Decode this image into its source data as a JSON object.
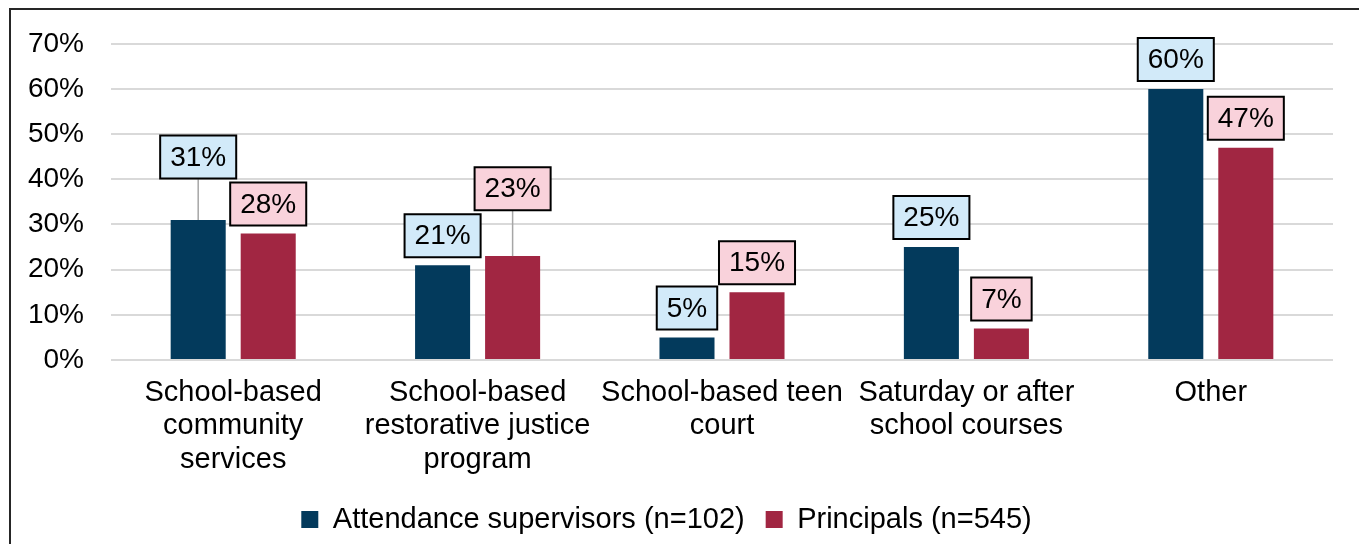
{
  "chart_data": {
    "type": "bar",
    "categories": [
      "School-based community services",
      "School-based restorative justice program",
      "School-based teen court",
      "Saturday or after school courses",
      "Other"
    ],
    "series": [
      {
        "name": "Attendance supervisors (n=102)",
        "color": "#033a5c",
        "values": [
          31,
          21,
          5,
          25,
          60
        ],
        "value_labels": [
          "31%",
          "21%",
          "5%",
          "25%",
          "60%"
        ]
      },
      {
        "name": "Principals (n=545)",
        "color": "#a12642",
        "values": [
          28,
          23,
          15,
          7,
          47
        ],
        "value_labels": [
          "28%",
          "23%",
          "15%",
          "7%",
          "47%"
        ]
      }
    ],
    "ylim": [
      0,
      70
    ],
    "yticks": [
      {
        "value": 0,
        "label": "0%"
      },
      {
        "value": 10,
        "label": "10%"
      },
      {
        "value": 20,
        "label": "20%"
      },
      {
        "value": 30,
        "label": "30%"
      },
      {
        "value": 40,
        "label": "40%"
      },
      {
        "value": 50,
        "label": "50%"
      },
      {
        "value": 60,
        "label": "60%"
      },
      {
        "value": 70,
        "label": "70%"
      }
    ],
    "grid": "y",
    "legend": "bottom"
  }
}
